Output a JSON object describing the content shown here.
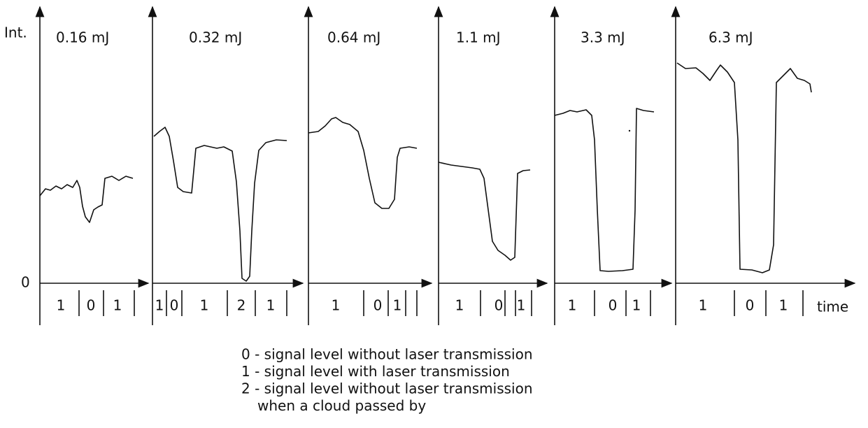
{
  "y_axis_label": "Int.",
  "zero_label": "0",
  "x_axis_label": "time",
  "panels": [
    {
      "title": "0.16 mJ",
      "segments": [
        "1",
        "0",
        "1"
      ]
    },
    {
      "title": "0.32 mJ",
      "segments": [
        "1",
        "0",
        "1",
        "2",
        "1"
      ]
    },
    {
      "title": "0.64 mJ",
      "segments": [
        "1",
        "0",
        "1"
      ]
    },
    {
      "title": "1.1 mJ",
      "segments": [
        "1",
        "0",
        "1"
      ]
    },
    {
      "title": "3.3 mJ",
      "segments": [
        "1",
        "0",
        "1"
      ]
    },
    {
      "title": "6.3 mJ",
      "segments": [
        "1",
        "0",
        "1"
      ]
    }
  ],
  "legend": [
    "0 - signal level without laser transmission",
    "1 - signal level with laser transmission",
    "2 - signal level without laser transmission",
    "when a cloud passed by"
  ]
}
